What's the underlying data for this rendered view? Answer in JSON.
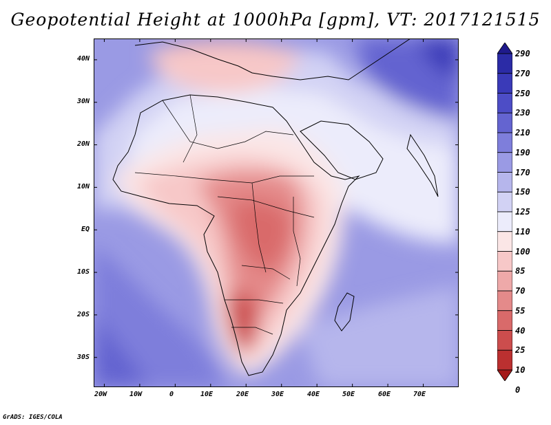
{
  "title": "Geopotential Height at 1000hPa [gpm], VT: 2017121515",
  "credit": "GrADS: IGES/COLA",
  "lat_labels": [
    "40N",
    "30N",
    "20N",
    "10N",
    "EQ",
    "10S",
    "20S",
    "30S"
  ],
  "lon_labels": [
    "20W",
    "10W",
    "0",
    "10E",
    "20E",
    "30E",
    "40E",
    "50E",
    "60E",
    "70E"
  ],
  "colorbar": {
    "levels": [
      "290",
      "270",
      "250",
      "230",
      "210",
      "190",
      "170",
      "150",
      "125",
      "110",
      "100",
      "85",
      "70",
      "55",
      "40",
      "25",
      "10",
      "0"
    ],
    "colors": [
      "#1f1a8c",
      "#2b2ba6",
      "#3a3ab8",
      "#4d4dc6",
      "#6464d0",
      "#7e7edb",
      "#9a9ae4",
      "#b6b6ec",
      "#d2d2f4",
      "#ececfb",
      "#fbe6e6",
      "#f7c8c8",
      "#eea9a9",
      "#e48a8a",
      "#d96a6a",
      "#cc4d4d",
      "#bb3030",
      "#a51a1a"
    ]
  },
  "map": {
    "lon_min": -23,
    "lon_max": 80,
    "lat_min": -37,
    "lat_max": 45,
    "ocean_color": "#9a9ae4"
  }
}
